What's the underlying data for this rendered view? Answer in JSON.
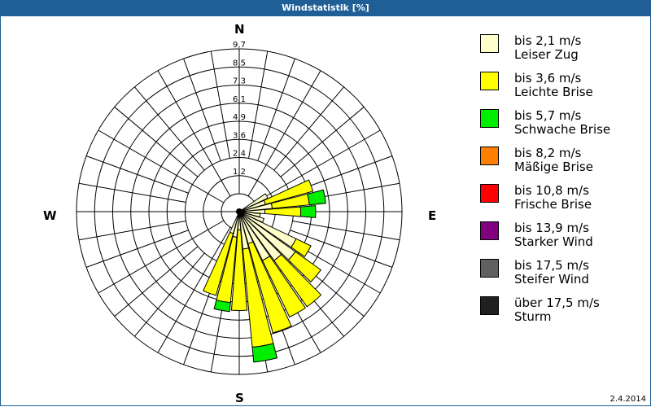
{
  "window": {
    "title": "Windstatistik [%]"
  },
  "chart_data": {
    "type": "windrose",
    "title": "Windstatistik [%]",
    "unit": "%",
    "directions": {
      "N": "N",
      "E": "E",
      "S": "S",
      "W": "W"
    },
    "ring_labels": [
      "1,2",
      "2,4",
      "3,6",
      "4,9",
      "6,1",
      "7,3",
      "8,5",
      "9,7"
    ],
    "rmax": 9.7,
    "speed_classes": [
      {
        "label": "bis 2,1 m/s",
        "name": "Leiser Zug",
        "color": "#ffffcc"
      },
      {
        "label": "bis 3,6 m/s",
        "name": "Leichte Brise",
        "color": "#ffff00"
      },
      {
        "label": "bis 5,7 m/s",
        "name": "Schwache Brise",
        "color": "#00ee00"
      },
      {
        "label": "bis 8,2 m/s",
        "name": "Mäßige Brise",
        "color": "#ff8000"
      },
      {
        "label": "bis 10,8 m/s",
        "name": "Frische Brise",
        "color": "#ff0000"
      },
      {
        "label": "bis 13,9 m/s",
        "name": "Starker Wind",
        "color": "#800080"
      },
      {
        "label": "bis 17,5 m/s",
        "name": "Steifer Wind",
        "color": "#606060"
      },
      {
        "label": "über 17,5 m/s",
        "name": "Sturm",
        "color": "#202020"
      }
    ],
    "sectors_deg": [
      60,
      70,
      80,
      90,
      100,
      110,
      120,
      130,
      140,
      150,
      160,
      170,
      180,
      190,
      200
    ],
    "series": [
      {
        "name": "bis 2,1 m/s",
        "values": [
          1.9,
          1.6,
          2.0,
          1.5,
          1.2,
          1.5,
          4.0,
          4.4,
          3.8,
          3.4,
          2.0,
          2.3,
          1.0,
          1.5,
          1.3
        ]
      },
      {
        "name": "bis 3,6 m/s",
        "values": [
          0,
          3.3,
          2.5,
          2.4,
          0,
          0,
          1.1,
          2.1,
          3.8,
          4.2,
          6.2,
          6.6,
          5.4,
          4.4,
          4.3
        ]
      },
      {
        "name": "bis 5,7 m/s",
        "values": [
          0,
          0,
          1.1,
          1.0,
          0,
          0,
          0,
          0,
          0,
          0,
          0,
          1.0,
          0,
          0.6,
          0
        ]
      }
    ]
  },
  "footer": {
    "date": "2.4.2014"
  }
}
